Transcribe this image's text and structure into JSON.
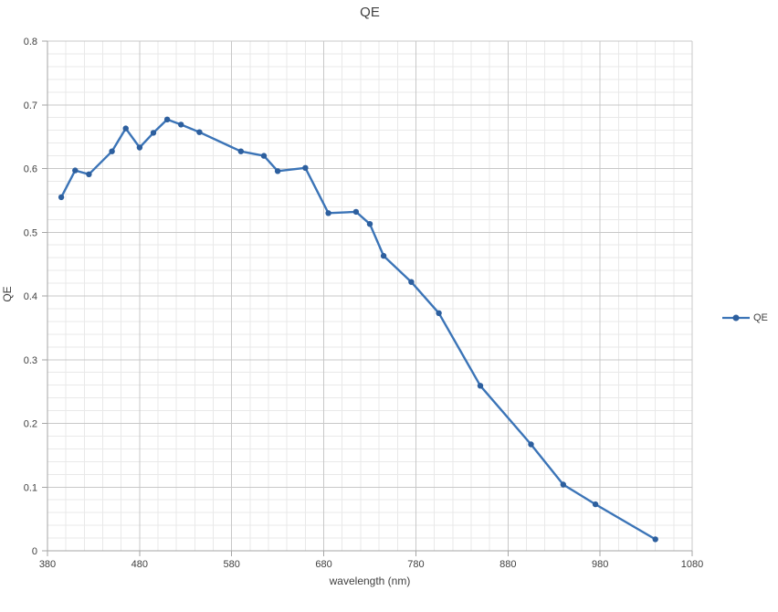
{
  "chart": {
    "title": "QE",
    "xlabel": "wavelength (nm)",
    "ylabel": "QE",
    "legend_entries": [
      "QE"
    ]
  },
  "colors": {
    "line": "#3B74B7",
    "marker": "#2D5F9E",
    "major_grid": "#C8C8C8",
    "minor_grid": "#E9E9E9",
    "axis": "#A6A6A6",
    "text": "#404040"
  },
  "chart_data": {
    "type": "line",
    "title": "QE",
    "xlabel": "wavelength (nm)",
    "ylabel": "QE",
    "xlim": [
      380,
      1080
    ],
    "ylim": [
      0,
      0.8
    ],
    "x_ticks": [
      380,
      480,
      580,
      680,
      780,
      880,
      980,
      1080
    ],
    "x_tick_labels": [
      "380",
      "480",
      "580",
      "680",
      "780",
      "880",
      "980",
      "1080"
    ],
    "y_ticks": [
      0,
      0.1,
      0.2,
      0.3,
      0.4,
      0.5,
      0.6,
      0.7,
      0.8
    ],
    "y_tick_labels": [
      "0",
      "0.1",
      "0.2",
      "0.3",
      "0.4",
      "0.5",
      "0.6",
      "0.7",
      "0.8"
    ],
    "x_minor_step": 20,
    "y_minor_step": 0.02,
    "grid": "major and minor gridlines on",
    "legend_position": "right",
    "series": [
      {
        "name": "QE",
        "x": [
          395,
          410,
          425,
          450,
          465,
          480,
          495,
          510,
          525,
          545,
          590,
          615,
          630,
          660,
          685,
          715,
          730,
          745,
          775,
          805,
          850,
          905,
          940,
          975,
          1040
        ],
        "y": [
          0.555,
          0.597,
          0.591,
          0.627,
          0.663,
          0.633,
          0.656,
          0.677,
          0.669,
          0.657,
          0.627,
          0.62,
          0.596,
          0.601,
          0.53,
          0.532,
          0.513,
          0.463,
          0.422,
          0.373,
          0.259,
          0.167,
          0.104,
          0.073,
          0.018
        ]
      }
    ]
  }
}
